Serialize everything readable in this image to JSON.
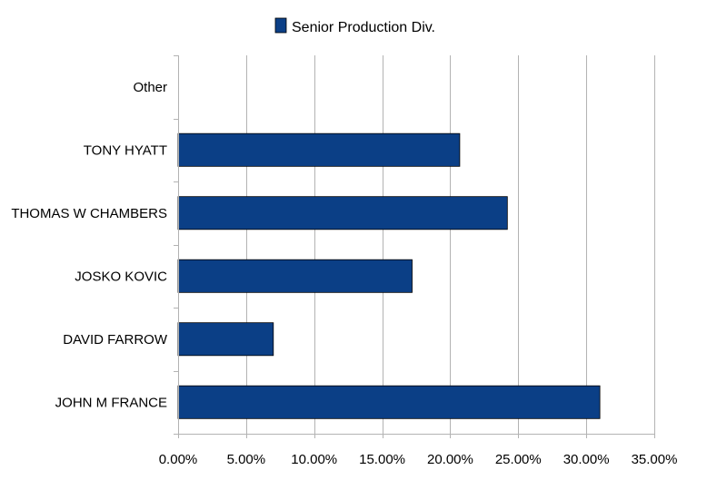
{
  "chart_data": {
    "type": "bar",
    "orientation": "horizontal",
    "categories": [
      "JOHN M FRANCE",
      "DAVID FARROW",
      "JOSKO KOVIC",
      "THOMAS W CHAMBERS",
      "TONY HYATT",
      "Other"
    ],
    "series": [
      {
        "name": "Senior Production Div.",
        "color": "#0b3f86",
        "values": [
          0.31,
          0.07,
          0.172,
          0.242,
          0.207,
          0
        ]
      }
    ],
    "xlim": [
      0,
      0.35
    ],
    "xticks": [
      0,
      0.05,
      0.1,
      0.15,
      0.2,
      0.25,
      0.3,
      0.35
    ],
    "xtick_labels": [
      "0.00%",
      "5.00%",
      "10.00%",
      "15.00%",
      "20.00%",
      "25.00%",
      "30.00%",
      "35.00%"
    ],
    "grid": "vertical",
    "legend_position": "top-center"
  }
}
